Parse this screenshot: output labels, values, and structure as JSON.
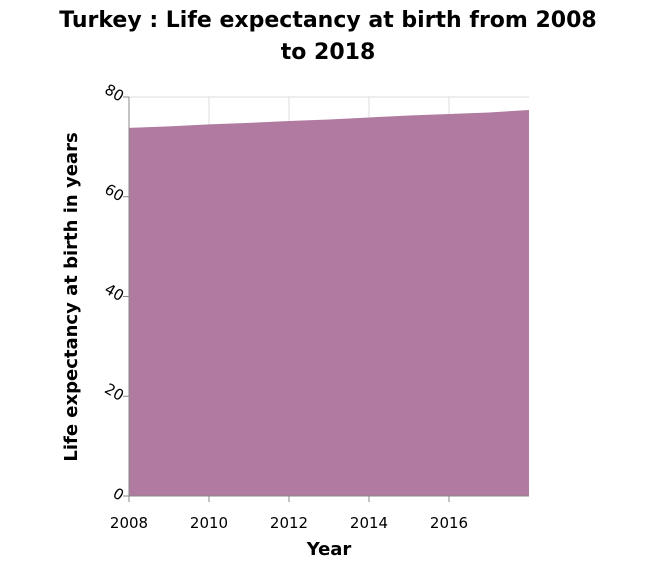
{
  "chart_data": {
    "type": "area",
    "title_lines": [
      "Turkey : Life expectancy at birth from 2008",
      "to 2018"
    ],
    "xlabel": "Year",
    "ylabel": "Life expectancy at birth in years",
    "x": [
      2008,
      2009,
      2010,
      2011,
      2012,
      2013,
      2014,
      2015,
      2016,
      2017,
      2018
    ],
    "series": [
      {
        "values": [
          73.8,
          74.1,
          74.5,
          74.8,
          75.2,
          75.5,
          75.9,
          76.3,
          76.6,
          76.9,
          77.4
        ]
      }
    ],
    "xlim": [
      2008,
      2018
    ],
    "ylim": [
      0,
      80
    ],
    "xticks": [
      2008,
      2010,
      2012,
      2014,
      2016
    ],
    "yticks": [
      0,
      20,
      40,
      60,
      80
    ],
    "grid": true,
    "colors": {
      "area": "#b07aa1"
    }
  }
}
